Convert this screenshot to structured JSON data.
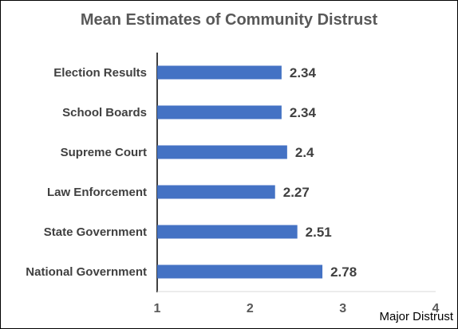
{
  "chart_data": {
    "type": "bar",
    "orientation": "horizontal",
    "title": "Mean Estimates of Community Distrust",
    "xlabel": "Major Distrust",
    "ylabel": "",
    "categories": [
      "Election Results",
      "School Boards",
      "Supreme Court",
      "Law Enforcement",
      "State Government",
      "National Government"
    ],
    "values": [
      2.34,
      2.34,
      2.4,
      2.27,
      2.51,
      2.78
    ],
    "value_labels": [
      "2.34",
      "2.34",
      "2.4",
      "2.27",
      "2.51",
      "2.78"
    ],
    "xlim": [
      1,
      4
    ],
    "xticks": [
      "1",
      "2",
      "3",
      "4"
    ],
    "bar_color": "#4472C4",
    "grid": false,
    "legend": "none"
  }
}
